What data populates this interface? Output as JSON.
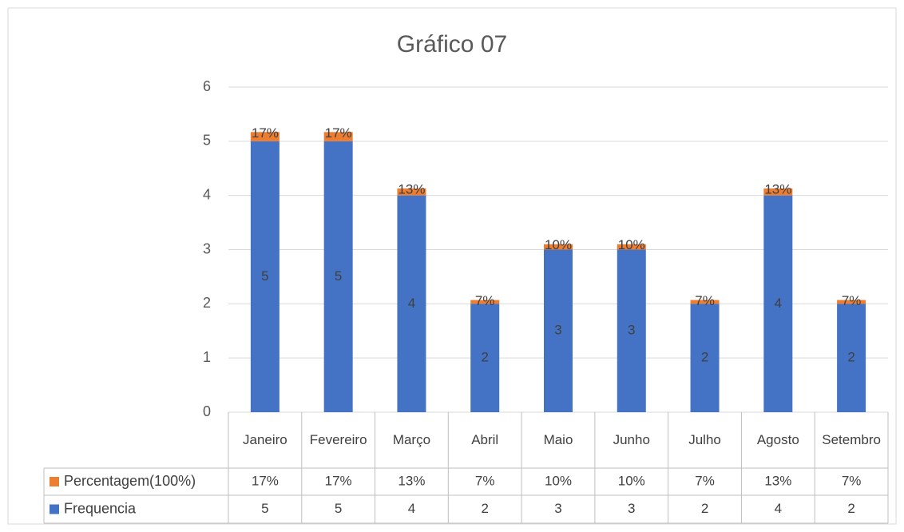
{
  "chart_data": {
    "type": "bar",
    "stacked": true,
    "title": "Gráfico 07",
    "categories": [
      "Janeiro",
      "Fevereiro",
      "Março",
      "Abril",
      "Maio",
      "Junho",
      "Julho",
      "Agosto",
      "Setembro"
    ],
    "series": [
      {
        "name": "Frequencia",
        "color": "#4472c4",
        "values": [
          5,
          5,
          4,
          2,
          3,
          3,
          2,
          4,
          2
        ]
      },
      {
        "name": "Percentagem(100%)",
        "color": "#ed7d31",
        "values": [
          0.17,
          0.17,
          0.13,
          0.07,
          0.1,
          0.1,
          0.07,
          0.13,
          0.07
        ],
        "value_labels": [
          "17%",
          "17%",
          "13%",
          "7%",
          "10%",
          "10%",
          "7%",
          "13%",
          "7%"
        ]
      }
    ],
    "ylim": [
      0,
      6
    ],
    "yticks": [
      0,
      1,
      2,
      3,
      4,
      5,
      6
    ],
    "grid": true,
    "data_table": true
  }
}
